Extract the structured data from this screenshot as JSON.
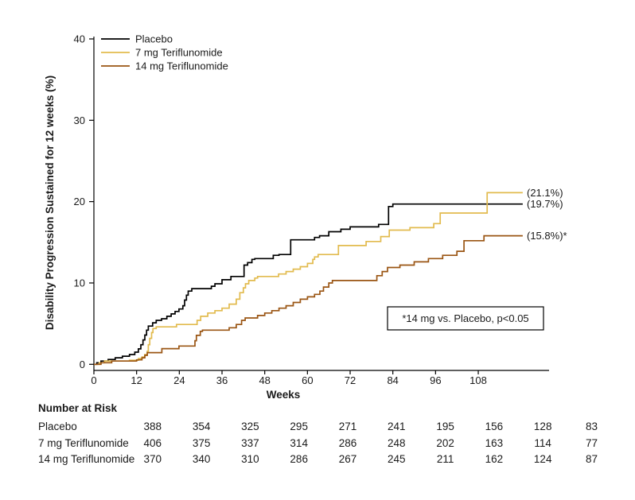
{
  "chart_data": {
    "type": "line",
    "subtype": "kaplan-meier-step",
    "title": "",
    "xlabel": "Weeks",
    "ylabel": "Disability Progression Sustained for 12 weeks (%)",
    "x_ticks": [
      0,
      12,
      24,
      36,
      48,
      60,
      72,
      84,
      96,
      108
    ],
    "y_ticks": [
      0,
      10,
      20,
      30,
      40
    ],
    "xlim": [
      0,
      128
    ],
    "ylim": [
      0,
      40
    ],
    "grid": false,
    "legend_position": "top-left",
    "annotation": "*14 mg vs. Placebo, p<0.05",
    "series": [
      {
        "name": "Placebo",
        "color": "#000000",
        "end_label": "(19.7%)",
        "end_value": 19.7,
        "points": [
          [
            0,
            0
          ],
          [
            0.8,
            0.2
          ],
          [
            2,
            0.4
          ],
          [
            4,
            0.6
          ],
          [
            6,
            0.8
          ],
          [
            8,
            1.0
          ],
          [
            10,
            1.2
          ],
          [
            11.5,
            1.5
          ],
          [
            12.5,
            1.9
          ],
          [
            13.2,
            2.4
          ],
          [
            13.8,
            3.0
          ],
          [
            14.3,
            3.6
          ],
          [
            14.8,
            4.2
          ],
          [
            15.3,
            4.7
          ],
          [
            16.5,
            5.1
          ],
          [
            17.5,
            5.4
          ],
          [
            19,
            5.6
          ],
          [
            20.5,
            5.9
          ],
          [
            21.7,
            6.2
          ],
          [
            22.8,
            6.5
          ],
          [
            23.9,
            6.8
          ],
          [
            25,
            7.2
          ],
          [
            25.5,
            7.9
          ],
          [
            26,
            8.5
          ],
          [
            26.5,
            9.0
          ],
          [
            27.5,
            9.3
          ],
          [
            33,
            9.6
          ],
          [
            34,
            9.9
          ],
          [
            36,
            10.4
          ],
          [
            38.5,
            10.8
          ],
          [
            42.2,
            12.2
          ],
          [
            43.2,
            12.5
          ],
          [
            44.4,
            12.9
          ],
          [
            45.2,
            13.0
          ],
          [
            50.4,
            13.4
          ],
          [
            52,
            13.5
          ],
          [
            55.3,
            15.3
          ],
          [
            62,
            15.6
          ],
          [
            63.4,
            15.8
          ],
          [
            66,
            16.3
          ],
          [
            69.4,
            16.6
          ],
          [
            72,
            16.9
          ],
          [
            80,
            17.2
          ],
          [
            82.8,
            19.4
          ],
          [
            84,
            19.7
          ],
          [
            120.5,
            19.7
          ]
        ]
      },
      {
        "name": "7 mg Teriflunomide",
        "color": "#E2BB4E",
        "end_label": "(21.1%)",
        "end_value": 21.1,
        "points": [
          [
            0,
            0
          ],
          [
            1.5,
            0.2
          ],
          [
            3,
            0.4
          ],
          [
            10,
            0.5
          ],
          [
            12.5,
            0.7
          ],
          [
            13.5,
            0.9
          ],
          [
            14.3,
            1.2
          ],
          [
            15,
            1.6
          ],
          [
            15.3,
            2.4
          ],
          [
            15.7,
            3.2
          ],
          [
            16.2,
            3.9
          ],
          [
            16.6,
            4.4
          ],
          [
            17.5,
            4.6
          ],
          [
            23.2,
            4.9
          ],
          [
            29,
            5.4
          ],
          [
            30,
            5.9
          ],
          [
            32,
            6.3
          ],
          [
            34,
            6.6
          ],
          [
            36,
            6.9
          ],
          [
            38,
            7.4
          ],
          [
            40,
            8.0
          ],
          [
            41,
            8.8
          ],
          [
            42,
            9.4
          ],
          [
            42.6,
            9.9
          ],
          [
            43.5,
            10.3
          ],
          [
            45.2,
            10.6
          ],
          [
            46,
            10.8
          ],
          [
            51.9,
            11.1
          ],
          [
            54,
            11.4
          ],
          [
            56,
            11.7
          ],
          [
            58,
            12.0
          ],
          [
            60,
            12.4
          ],
          [
            61.5,
            12.9
          ],
          [
            62,
            13.2
          ],
          [
            63,
            13.5
          ],
          [
            68.7,
            14.6
          ],
          [
            76.5,
            15.1
          ],
          [
            80.6,
            15.7
          ],
          [
            83,
            16.5
          ],
          [
            88.8,
            16.8
          ],
          [
            95.5,
            17.3
          ],
          [
            97.3,
            18.6
          ],
          [
            110.5,
            21.1
          ],
          [
            120.5,
            21.1
          ]
        ]
      },
      {
        "name": "14 mg Teriflunomide",
        "color": "#9A5513",
        "end_label": "(15.8%)*",
        "end_value": 15.8,
        "points": [
          [
            0,
            0
          ],
          [
            2,
            0.2
          ],
          [
            5,
            0.4
          ],
          [
            12,
            0.55
          ],
          [
            13.5,
            0.8
          ],
          [
            14.3,
            1.1
          ],
          [
            15,
            1.44
          ],
          [
            19.1,
            1.93
          ],
          [
            23.9,
            2.25
          ],
          [
            28.4,
            2.9
          ],
          [
            28.8,
            3.56
          ],
          [
            29.9,
            4.05
          ],
          [
            30.5,
            4.2
          ],
          [
            38,
            4.5
          ],
          [
            40,
            4.9
          ],
          [
            41.5,
            5.4
          ],
          [
            42.5,
            5.7
          ],
          [
            46,
            6.0
          ],
          [
            48,
            6.3
          ],
          [
            50,
            6.6
          ],
          [
            52,
            6.9
          ],
          [
            54,
            7.2
          ],
          [
            56,
            7.6
          ],
          [
            58,
            8.0
          ],
          [
            60,
            8.3
          ],
          [
            62,
            8.6
          ],
          [
            63.5,
            9.0
          ],
          [
            64.5,
            9.5
          ],
          [
            66,
            10.0
          ],
          [
            67,
            10.3
          ],
          [
            79.5,
            10.9
          ],
          [
            81,
            11.4
          ],
          [
            82.5,
            11.9
          ],
          [
            86,
            12.2
          ],
          [
            90,
            12.6
          ],
          [
            94,
            13.0
          ],
          [
            98,
            13.4
          ],
          [
            102,
            13.9
          ],
          [
            104,
            15.2
          ],
          [
            109.6,
            15.8
          ],
          [
            120.5,
            15.8
          ]
        ]
      }
    ]
  },
  "risk_table": {
    "title": "Number at Risk",
    "weeks": [
      0,
      12,
      24,
      36,
      48,
      60,
      72,
      84,
      96,
      108
    ],
    "rows": [
      {
        "label": "Placebo",
        "values": [
          "388",
          "354",
          "325",
          "295",
          "271",
          "241",
          "195",
          "156",
          "128",
          "83"
        ]
      },
      {
        "label": "7 mg Teriflunomide",
        "values": [
          "406",
          "375",
          "337",
          "314",
          "286",
          "248",
          "202",
          "163",
          "114",
          "77"
        ]
      },
      {
        "label": "14 mg Teriflunomide",
        "values": [
          "370",
          "340",
          "310",
          "286",
          "267",
          "245",
          "211",
          "162",
          "124",
          "87"
        ]
      }
    ]
  }
}
